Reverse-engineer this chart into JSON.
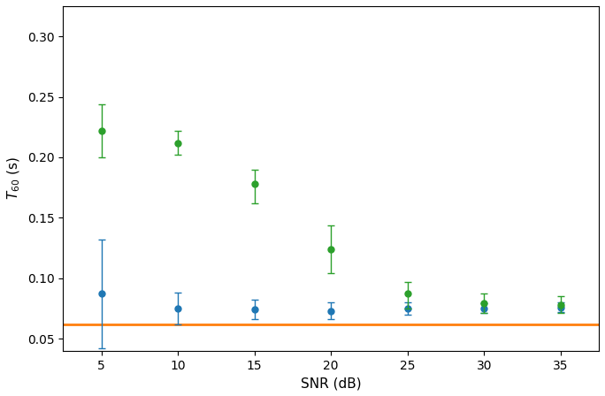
{
  "snr_values": [
    5,
    10,
    15,
    20,
    25,
    30,
    35
  ],
  "blue_mean": [
    0.087,
    0.075,
    0.074,
    0.073,
    0.075,
    0.075,
    0.076
  ],
  "blue_err": [
    0.045,
    0.013,
    0.008,
    0.007,
    0.005,
    0.004,
    0.004
  ],
  "green_mean": [
    0.222,
    0.212,
    0.178,
    0.124,
    0.087,
    0.079,
    0.078
  ],
  "green_err_upper": [
    0.022,
    0.01,
    0.012,
    0.02,
    0.01,
    0.008,
    0.007
  ],
  "green_err_lower": [
    0.022,
    0.01,
    0.016,
    0.02,
    0.012,
    0.008,
    0.007
  ],
  "orange_line": 0.062,
  "blue_color": "#1f77b4",
  "green_color": "#2ca02c",
  "orange_color": "#ff7f0e",
  "xlabel": "SNR (dB)",
  "ylabel": "$T_{60}$ (s)",
  "xlim": [
    2.5,
    37.5
  ],
  "ylim": [
    0.04,
    0.325
  ],
  "yticks": [
    0.05,
    0.1,
    0.15,
    0.2,
    0.25,
    0.3
  ],
  "marker_size": 5,
  "capsize": 3,
  "linewidth": 1.0,
  "figsize": [
    6.84,
    4.48
  ],
  "dpi": 100
}
